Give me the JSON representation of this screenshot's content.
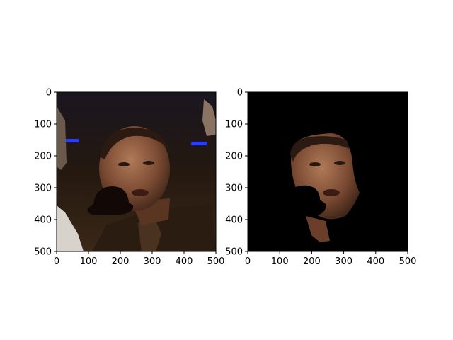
{
  "figure": {
    "background": "#ffffff",
    "frame_color": "#000000"
  },
  "chart_data": [
    {
      "type": "image",
      "content": "photo of a man's face with a dark hat-shaped occluder over the lower-left of the face",
      "xlim": [
        0,
        500
      ],
      "ylim": [
        500,
        0
      ],
      "xticks": [
        0,
        100,
        200,
        300,
        400,
        500
      ],
      "yticks": [
        0,
        100,
        200,
        300,
        400,
        500
      ],
      "xtick_labels": [
        "0",
        "100",
        "200",
        "300",
        "400",
        "500"
      ],
      "ytick_labels": [
        "0",
        "100",
        "200",
        "300",
        "400",
        "500"
      ],
      "grid": false
    },
    {
      "type": "image",
      "content": "segmentation mask: face region kept, rest black, occluder region removed",
      "xlim": [
        0,
        500
      ],
      "ylim": [
        500,
        0
      ],
      "xticks": [
        0,
        100,
        200,
        300,
        400,
        500
      ],
      "yticks": [
        0,
        100,
        200,
        300,
        400,
        500
      ],
      "xtick_labels": [
        "0",
        "100",
        "200",
        "300",
        "400",
        "500"
      ],
      "ytick_labels": [
        "0",
        "100",
        "200",
        "300",
        "400",
        "500"
      ],
      "grid": false
    }
  ]
}
